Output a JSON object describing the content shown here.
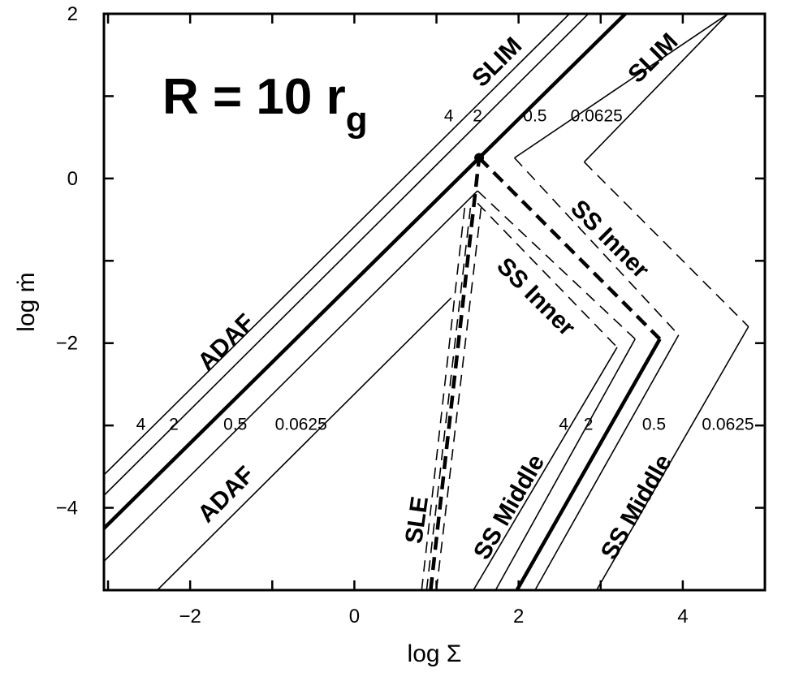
{
  "chart_data": {
    "type": "line",
    "title_main": "R = 10 r",
    "title_subscript": "g",
    "xlabel": "log Σ",
    "ylabel": "log ṁ",
    "xlim": [
      -3.05,
      5.0
    ],
    "ylim": [
      -5.0,
      2.0
    ],
    "x_ticks": [
      -2,
      0,
      2,
      4
    ],
    "y_ticks": [
      -4,
      -2,
      0,
      2
    ],
    "x_tick_labels": [
      "−2",
      "0",
      "2",
      "4"
    ],
    "y_tick_labels": [
      "−4",
      "−2",
      "0",
      "2"
    ],
    "grid": false,
    "alpha_values": [
      "4",
      "2",
      "0.5",
      "0.0625"
    ],
    "series": [
      {
        "family": "ADAF/SLIM",
        "alpha": "4",
        "style": "solid",
        "weight": "thin",
        "x": [
          -3.05,
          2.62
        ],
        "y": [
          -3.6,
          2.0
        ]
      },
      {
        "family": "ADAF/SLIM",
        "alpha": "2",
        "style": "solid",
        "weight": "thin",
        "x": [
          -3.05,
          2.85
        ],
        "y": [
          -3.85,
          2.0
        ]
      },
      {
        "family": "ADAF/SLIM",
        "alpha": "1",
        "style": "solid",
        "weight": "thick",
        "x": [
          -3.05,
          1.52,
          3.3
        ],
        "y": [
          -4.25,
          0.25,
          2.0
        ]
      },
      {
        "family": "ADAF",
        "alpha": "0.5",
        "style": "solid",
        "weight": "thin",
        "x": [
          -3.05,
          1.5
        ],
        "y": [
          -4.65,
          -0.15
        ]
      },
      {
        "family": "ADAF",
        "alpha": "0.0625",
        "style": "solid",
        "weight": "thin",
        "x": [
          -2.4,
          1.18
        ],
        "y": [
          -5.0,
          -1.45
        ]
      },
      {
        "family": "SLIM",
        "alpha": "0.5",
        "style": "solid",
        "weight": "thin",
        "x": [
          1.95,
          4.55
        ],
        "y": [
          0.25,
          2.0
        ]
      },
      {
        "family": "SLIM",
        "alpha": "0.0625",
        "style": "solid",
        "weight": "thin",
        "x": [
          2.8,
          4.55
        ],
        "y": [
          0.2,
          2.0
        ]
      },
      {
        "family": "SLE",
        "alpha": "4",
        "style": "dashed",
        "weight": "thin",
        "x": [
          0.82,
          1.35
        ],
        "y": [
          -5.0,
          -0.3
        ]
      },
      {
        "family": "SLE",
        "alpha": "2",
        "style": "dashed",
        "weight": "thin",
        "x": [
          0.88,
          1.42
        ],
        "y": [
          -5.0,
          -0.3
        ]
      },
      {
        "family": "SLE",
        "alpha": "1",
        "style": "dashed",
        "weight": "thick",
        "x": [
          0.93,
          1.52
        ],
        "y": [
          -5.0,
          0.25
        ]
      },
      {
        "family": "SLE",
        "alpha": "0.5",
        "style": "dashed",
        "weight": "thin",
        "x": [
          1.0,
          1.55
        ],
        "y": [
          -5.0,
          -0.3
        ]
      },
      {
        "family": "SS Inner",
        "alpha": "4",
        "style": "dashed",
        "weight": "thin",
        "x": [
          1.5,
          3.2
        ],
        "y": [
          -0.3,
          -2.05
        ]
      },
      {
        "family": "SS Inner",
        "alpha": "2",
        "style": "dashed",
        "weight": "thin",
        "x": [
          1.5,
          3.42
        ],
        "y": [
          -0.15,
          -1.95
        ]
      },
      {
        "family": "SS Inner",
        "alpha": "1",
        "style": "dashed",
        "weight": "thick",
        "x": [
          1.52,
          3.72
        ],
        "y": [
          0.25,
          -1.95
        ]
      },
      {
        "family": "SS Inner",
        "alpha": "0.5",
        "style": "dashed",
        "weight": "thin",
        "x": [
          1.95,
          3.95
        ],
        "y": [
          0.25,
          -1.9
        ]
      },
      {
        "family": "SS Inner",
        "alpha": "0.0625",
        "style": "dashed",
        "weight": "thin",
        "x": [
          2.8,
          4.8
        ],
        "y": [
          0.2,
          -1.8
        ]
      },
      {
        "family": "SS Middle",
        "alpha": "4",
        "style": "solid",
        "weight": "thin",
        "x": [
          1.45,
          3.2
        ],
        "y": [
          -5.0,
          -2.05
        ]
      },
      {
        "family": "SS Middle",
        "alpha": "2",
        "style": "solid",
        "weight": "thin",
        "x": [
          1.72,
          3.42
        ],
        "y": [
          -5.0,
          -1.95
        ]
      },
      {
        "family": "SS Middle",
        "alpha": "1",
        "style": "solid",
        "weight": "thick",
        "x": [
          1.98,
          3.72
        ],
        "y": [
          -5.0,
          -1.95
        ]
      },
      {
        "family": "SS Middle",
        "alpha": "0.5",
        "style": "solid",
        "weight": "thin",
        "x": [
          2.2,
          3.95
        ],
        "y": [
          -5.0,
          -1.9
        ]
      },
      {
        "family": "SS Middle",
        "alpha": "0.0625",
        "style": "solid",
        "weight": "thin",
        "x": [
          2.95,
          4.8
        ],
        "y": [
          -5.0,
          -1.8
        ]
      }
    ],
    "points": [
      {
        "x": 1.52,
        "y": 0.25
      }
    ],
    "labels": [
      {
        "text": "SLIM",
        "x": 1.75,
        "y": 1.4,
        "angle": -45,
        "kind": "region"
      },
      {
        "text": "SLIM",
        "x": 3.65,
        "y": 1.45,
        "angle": -45,
        "kind": "region"
      },
      {
        "text": "ADAF",
        "x": -1.55,
        "y": -2.0,
        "angle": -45,
        "kind": "region"
      },
      {
        "text": "ADAF",
        "x": -1.55,
        "y": -3.85,
        "angle": -45,
        "kind": "region"
      },
      {
        "text": "SS Inner",
        "x": 3.1,
        "y": -0.75,
        "angle": 45,
        "kind": "region"
      },
      {
        "text": "SS Inner",
        "x": 2.2,
        "y": -1.45,
        "angle": 45,
        "kind": "region"
      },
      {
        "text": "SLE",
        "x": 0.78,
        "y": -4.15,
        "angle": -82,
        "kind": "region"
      },
      {
        "text": "SS Middle",
        "x": 1.9,
        "y": -4.0,
        "angle": -60,
        "kind": "region"
      },
      {
        "text": "SS Middle",
        "x": 3.45,
        "y": -4.0,
        "angle": -60,
        "kind": "region"
      },
      {
        "text": "4",
        "x": 1.15,
        "y": 0.75,
        "kind": "param"
      },
      {
        "text": "2",
        "x": 1.5,
        "y": 0.75,
        "kind": "param"
      },
      {
        "text": "0.5",
        "x": 2.2,
        "y": 0.75,
        "kind": "param"
      },
      {
        "text": "0.0625",
        "x": 2.95,
        "y": 0.75,
        "kind": "param"
      },
      {
        "text": "4",
        "x": -2.6,
        "y": -3.0,
        "kind": "param"
      },
      {
        "text": "2",
        "x": -2.2,
        "y": -3.0,
        "kind": "param"
      },
      {
        "text": "0.5",
        "x": -1.45,
        "y": -3.0,
        "kind": "param"
      },
      {
        "text": "0.0625",
        "x": -0.65,
        "y": -3.0,
        "kind": "param"
      },
      {
        "text": "4",
        "x": 2.55,
        "y": -3.0,
        "kind": "param"
      },
      {
        "text": "2",
        "x": 2.85,
        "y": -3.0,
        "kind": "param"
      },
      {
        "text": "0.5",
        "x": 3.65,
        "y": -3.0,
        "kind": "param"
      },
      {
        "text": "0.0625",
        "x": 4.55,
        "y": -3.0,
        "kind": "param"
      }
    ]
  }
}
